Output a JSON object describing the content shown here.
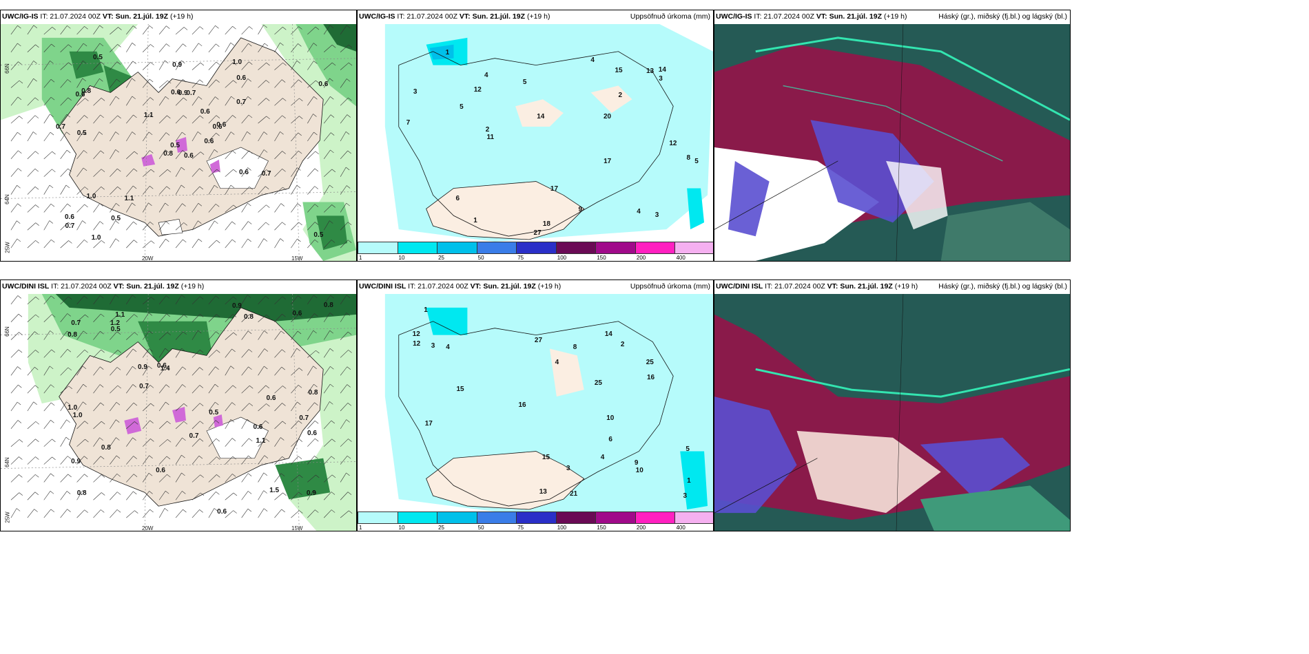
{
  "panels": {
    "r1c1": {
      "model": "UWC/IG-IS",
      "it": "IT: 21.07.2024 00Z",
      "vt": "VT: Sun. 21.júl. 19Z",
      "lead": "(+19 h)",
      "right": ""
    },
    "r1c2": {
      "model": "UWC/IG-IS",
      "it": "IT: 21.07.2024 00Z",
      "vt": "VT: Sun. 21.júl. 19Z",
      "lead": "(+19 h)",
      "right": "Uppsöfnuð úrkoma (mm)"
    },
    "r1c3": {
      "model": "UWC/IG-IS",
      "it": "IT: 21.07.2024 00Z",
      "vt": "VT: Sun. 21.júl. 19Z",
      "lead": "(+19 h)",
      "right": "Háský (gr.), miðský (fj.bl.) og lágský (bl.)"
    },
    "r2c1": {
      "model": "UWC/DINI ISL",
      "it": "IT: 21.07.2024 00Z",
      "vt": "VT: Sun. 21.júl. 19Z",
      "lead": "(+19 h)",
      "right": ""
    },
    "r2c2": {
      "model": "UWC/DINI ISL",
      "it": "IT: 21.07.2024 00Z",
      "vt": "VT: Sun. 21.júl. 19Z",
      "lead": "(+19 h)",
      "right": "Uppsöfnuð úrkoma (mm)"
    },
    "r2c3": {
      "model": "UWC/DINI ISL",
      "it": "IT: 21.07.2024 00Z",
      "vt": "VT: Sun. 21.júl. 19Z",
      "lead": "(+19 h)",
      "right": "Háský (gr.), miðský (fj.bl.) og lágský (bl.)"
    }
  },
  "axes": {
    "lat66": "66N",
    "lat64": "64N",
    "lon25": "25W",
    "lon20": "20W",
    "lon15": "15W",
    "lat64r": "64N"
  },
  "colorbar": {
    "ticks": [
      "1",
      "10",
      "25",
      "50",
      "75",
      "100",
      "150",
      "200",
      "400"
    ],
    "colors": [
      "#b6fbfb",
      "#00e8f0",
      "#00c0ea",
      "#3a7de8",
      "#2a2fc8",
      "#6a0a55",
      "#a00a8a",
      "#ff20c0",
      "#f5b0f0"
    ]
  },
  "wind_labels_top": [
    "0.6",
    "0.6",
    "0.5",
    "0.6",
    "0.6",
    "1.1",
    "1.0",
    "0.7",
    "0.6",
    "0.6",
    "0.5",
    "0.5",
    "0.5",
    "0.6",
    "0.8",
    "0.7",
    "1.0",
    "0.6",
    "0.6",
    "1.0",
    "1.1",
    "0.7",
    "0.5",
    "0.9",
    "0.6",
    "0.7",
    "0.8",
    "0.9",
    "0.7",
    "0.6"
  ],
  "wind_labels_bottom": [
    "0.6",
    "0.7",
    "0.8",
    "1.1",
    "1.4",
    "1.5",
    "0.9",
    "0.8",
    "0.9",
    "0.6",
    "0.8",
    "1.0",
    "0.7",
    "0.9",
    "0.6",
    "0.8",
    "0.7",
    "0.5",
    "0.6",
    "0.8",
    "0.8",
    "0.6",
    "0.7",
    "0.6",
    "0.9",
    "1.2",
    "1.1",
    "1.0",
    "0.5",
    "0.6"
  ],
  "precip_labels_top": [
    "3",
    "12",
    "20",
    "18",
    "13",
    "27",
    "17",
    "11",
    "14",
    "5",
    "8",
    "4",
    "2",
    "6",
    "7",
    "1",
    "2",
    "5",
    "3",
    "9",
    "4",
    "12",
    "14",
    "17",
    "15",
    "5",
    "3",
    "4",
    "1"
  ],
  "precip_labels_bottom": [
    "4",
    "10",
    "12",
    "25",
    "13",
    "27",
    "21",
    "14",
    "15",
    "17",
    "9",
    "8",
    "10",
    "3",
    "1",
    "2",
    "5",
    "4",
    "3",
    "6",
    "12",
    "15",
    "25",
    "16",
    "16",
    "4",
    "1",
    "3"
  ]
}
